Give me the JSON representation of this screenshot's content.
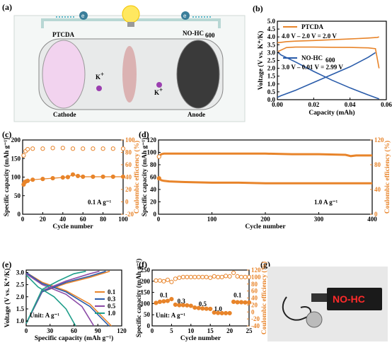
{
  "colors": {
    "orange": "#e8842a",
    "blue": "#2a5caa",
    "green": "#1f9e8a",
    "purple": "#8b4aa6",
    "black": "#1a1a1a"
  },
  "panel_labels": [
    "(a)",
    "(b)",
    "(c)",
    "(d)",
    "(e)",
    "(f)",
    "(g)"
  ],
  "schematic": {
    "cathode_title": "PTCDA",
    "anode_title": "NO-HC",
    "anode_sub": "600",
    "cathode_label": "Cathode",
    "anode_label": "Anode",
    "ion": "K",
    "ion_sup": "+",
    "electron": "e",
    "electron_sup": "-"
  },
  "device": {
    "display_text": "NO-HC"
  },
  "chart_data": [
    {
      "id": "b",
      "type": "line",
      "xlabel": "Capacity (mAh)",
      "ylabel": "Voltage (V vs. K⁺/K)",
      "xlim": [
        0,
        0.06
      ],
      "ylim": [
        0,
        5
      ],
      "xticks": [
        "0.00",
        "0.02",
        "0.04",
        "0.06"
      ],
      "yticks": [
        "0.0",
        "0.5",
        "1.0",
        "1.5",
        "2.0",
        "2.5",
        "3.0",
        "3.5",
        "4.0",
        "4.5",
        "5.0"
      ],
      "annotations": [
        "PTCDA",
        "4.0 V – 2.0 V = 2.0 V",
        "NO-HC",
        "600",
        "3.0 V – 0.01 V = 2.99 V"
      ],
      "series": [
        {
          "name": "PTCDA",
          "color": "#e8842a",
          "x": [
            0,
            0.005,
            0.01,
            0.02,
            0.03,
            0.04,
            0.05,
            0.055,
            0.056
          ],
          "y": [
            3.62,
            3.7,
            3.73,
            3.77,
            3.82,
            3.87,
            3.93,
            3.97,
            4.0
          ]
        },
        {
          "name": "PTCDA",
          "color": "#e8842a",
          "x": [
            0,
            0.005,
            0.01,
            0.02,
            0.03,
            0.04,
            0.05,
            0.054,
            0.056
          ],
          "y": [
            3.05,
            3.32,
            3.35,
            3.35,
            3.34,
            3.33,
            3.3,
            3.25,
            2.0
          ]
        },
        {
          "name": "NO-HC600",
          "color": "#2a5caa",
          "x": [
            0,
            0.002,
            0.01,
            0.02,
            0.03,
            0.04,
            0.05,
            0.054
          ],
          "y": [
            0.15,
            0.25,
            0.6,
            1.1,
            1.6,
            2.1,
            2.7,
            3.0
          ]
        },
        {
          "name": "NO-HC600",
          "color": "#2a5caa",
          "x": [
            0,
            0.002,
            0.01,
            0.02,
            0.03,
            0.04,
            0.05,
            0.056
          ],
          "y": [
            3.05,
            2.85,
            2.4,
            1.8,
            1.25,
            0.75,
            0.3,
            0.05
          ]
        }
      ]
    },
    {
      "id": "c",
      "type": "scatter",
      "xlabel": "Cycle number",
      "ylabel": "Specific capacity (mAh g⁻¹)",
      "y2label": "Coulombic efficiency (%)",
      "xlim": [
        0,
        100
      ],
      "ylim": [
        0,
        200
      ],
      "y2lim": [
        -20,
        100
      ],
      "xticks": [
        "0",
        "20",
        "40",
        "60",
        "80",
        "100"
      ],
      "yticks": [
        "0",
        "50",
        "100",
        "150",
        "200"
      ],
      "y2ticks": [
        "-20",
        "0",
        "20",
        "40",
        "60",
        "80",
        "100"
      ],
      "annotations": [
        "0.1 A g⁻¹"
      ],
      "capacity": {
        "x": [
          1,
          2,
          3,
          5,
          10,
          20,
          30,
          40,
          45,
          50,
          55,
          60,
          70,
          80,
          90,
          100
        ],
        "y": [
          80,
          86,
          88,
          90,
          93,
          95,
          97,
          99,
          100,
          107,
          103,
          101,
          101,
          101,
          101,
          101
        ]
      },
      "efficiency": {
        "x": [
          1,
          3,
          5,
          10,
          20,
          30,
          40,
          50,
          60,
          70,
          80,
          90,
          100
        ],
        "y": [
          75,
          82,
          85,
          86,
          86,
          87,
          87,
          86,
          86,
          86,
          86,
          86,
          86
        ]
      }
    },
    {
      "id": "d",
      "type": "scatter",
      "xlabel": "Cycle number",
      "ylabel": "Specific capacity (mAh g⁻¹)",
      "y2label": "Coulombic efficiency (%)",
      "xlim": [
        0,
        400
      ],
      "ylim": [
        0,
        120
      ],
      "y2lim": [
        0,
        120
      ],
      "xticks": [
        "0",
        "100",
        "200",
        "300",
        "400"
      ],
      "yticks": [
        "0",
        "20",
        "40",
        "60",
        "80",
        "100",
        "120"
      ],
      "y2ticks": [
        "0",
        "40",
        "80",
        "120"
      ],
      "annotations": [
        "1.0 A g⁻¹"
      ],
      "capacity": {
        "x": [
          1,
          5,
          10,
          20,
          50,
          100,
          150,
          200,
          250,
          300,
          350,
          400
        ],
        "y": [
          58,
          55,
          54,
          53,
          52,
          51,
          51,
          50,
          50,
          50,
          50,
          50
        ]
      },
      "efficiency": {
        "x": [
          1,
          5,
          10,
          20,
          50,
          100,
          150,
          200,
          250,
          300,
          350,
          360,
          370,
          400
        ],
        "y": [
          93,
          97,
          98,
          98,
          98,
          98,
          98,
          98,
          97,
          97,
          96,
          94,
          95,
          95
        ]
      }
    },
    {
      "id": "e",
      "type": "line",
      "xlabel": "Specific capacity (mAh g⁻¹)",
      "ylabel": "Voltage (V vs. K⁺/K)",
      "xlim": [
        0,
        120
      ],
      "ylim": [
        0.8,
        3.1
      ],
      "xticks": [
        "0",
        "30",
        "60",
        "90",
        "120"
      ],
      "yticks": [
        "1.0",
        "1.5",
        "2.0",
        "2.5",
        "3.0"
      ],
      "annotations": [
        "Unit: A g⁻¹"
      ],
      "legend": [
        "0.1",
        "0.3",
        "0.5",
        "1.0"
      ],
      "series": [
        {
          "name": "0.1",
          "color": "#e8842a",
          "charge": {
            "x": [
              0,
              20,
              50,
              80,
              105
            ],
            "y": [
              0.9,
              2.2,
              2.55,
              2.8,
              3.05
            ]
          },
          "discharge": {
            "x": [
              0,
              20,
              50,
              80,
              107
            ],
            "y": [
              3.0,
              2.6,
              2.25,
              1.7,
              0.8
            ]
          }
        },
        {
          "name": "0.3",
          "color": "#2a5caa",
          "charge": {
            "x": [
              0,
              20,
              50,
              80,
              100
            ],
            "y": [
              0.9,
              2.2,
              2.6,
              2.85,
              3.05
            ]
          },
          "discharge": {
            "x": [
              0,
              20,
              50,
              80,
              104
            ],
            "y": [
              3.0,
              2.55,
              2.2,
              1.6,
              0.8
            ]
          }
        },
        {
          "name": "0.5",
          "color": "#8b4aa6",
          "charge": {
            "x": [
              0,
              20,
              50,
              80,
              92
            ],
            "y": [
              0.9,
              2.25,
              2.65,
              2.95,
              3.05
            ]
          },
          "discharge": {
            "x": [
              0,
              20,
              50,
              70,
              85
            ],
            "y": [
              2.95,
              2.5,
              2.1,
              1.6,
              0.8
            ]
          }
        },
        {
          "name": "1.0",
          "color": "#1f9e8a",
          "charge": {
            "x": [
              0,
              20,
              40,
              60,
              75
            ],
            "y": [
              0.9,
              2.3,
              2.65,
              2.95,
              3.05
            ]
          },
          "discharge": {
            "x": [
              0,
              15,
              35,
              50,
              62
            ],
            "y": [
              2.9,
              2.4,
              2.0,
              1.5,
              0.8
            ]
          }
        }
      ]
    },
    {
      "id": "f",
      "type": "scatter",
      "xlabel": "Cycle number",
      "ylabel": "Specific capacity (mAh g⁻¹)",
      "y2label": "Coulombic efficiency (%)",
      "xlim": [
        0,
        25
      ],
      "ylim": [
        0,
        250
      ],
      "y2lim": [
        -40,
        120
      ],
      "xticks": [
        "0",
        "5",
        "10",
        "15",
        "20",
        "25"
      ],
      "yticks": [
        "0",
        "50",
        "100",
        "150",
        "200",
        "250"
      ],
      "y2ticks": [
        "-40",
        "-20",
        "0",
        "20",
        "40",
        "60",
        "80",
        "100",
        "120"
      ],
      "annotations": [
        "0.1",
        "0.3",
        "0.5",
        "1.0",
        "0.1",
        "Unit: A g⁻¹"
      ],
      "capacity": {
        "x": [
          1,
          2,
          3,
          4,
          5,
          6,
          7,
          8,
          9,
          10,
          11,
          12,
          13,
          14,
          15,
          16,
          17,
          18,
          19,
          20,
          21,
          22,
          23,
          24,
          25
        ],
        "y": [
          103,
          108,
          110,
          112,
          120,
          95,
          93,
          93,
          92,
          90,
          82,
          80,
          78,
          77,
          76,
          60,
          58,
          57,
          57,
          57,
          108,
          106,
          106,
          105,
          105
        ]
      },
      "efficiency": {
        "x": [
          1,
          2,
          3,
          4,
          5,
          6,
          7,
          8,
          9,
          10,
          11,
          12,
          13,
          14,
          15,
          16,
          17,
          18,
          19,
          20,
          21,
          22,
          23,
          24,
          25
        ],
        "y": [
          90,
          90,
          88,
          92,
          86,
          95,
          98,
          100,
          100,
          100,
          100,
          100,
          100,
          100,
          98,
          102,
          100,
          100,
          103,
          102,
          112,
          102,
          100,
          100,
          100
        ]
      }
    }
  ]
}
